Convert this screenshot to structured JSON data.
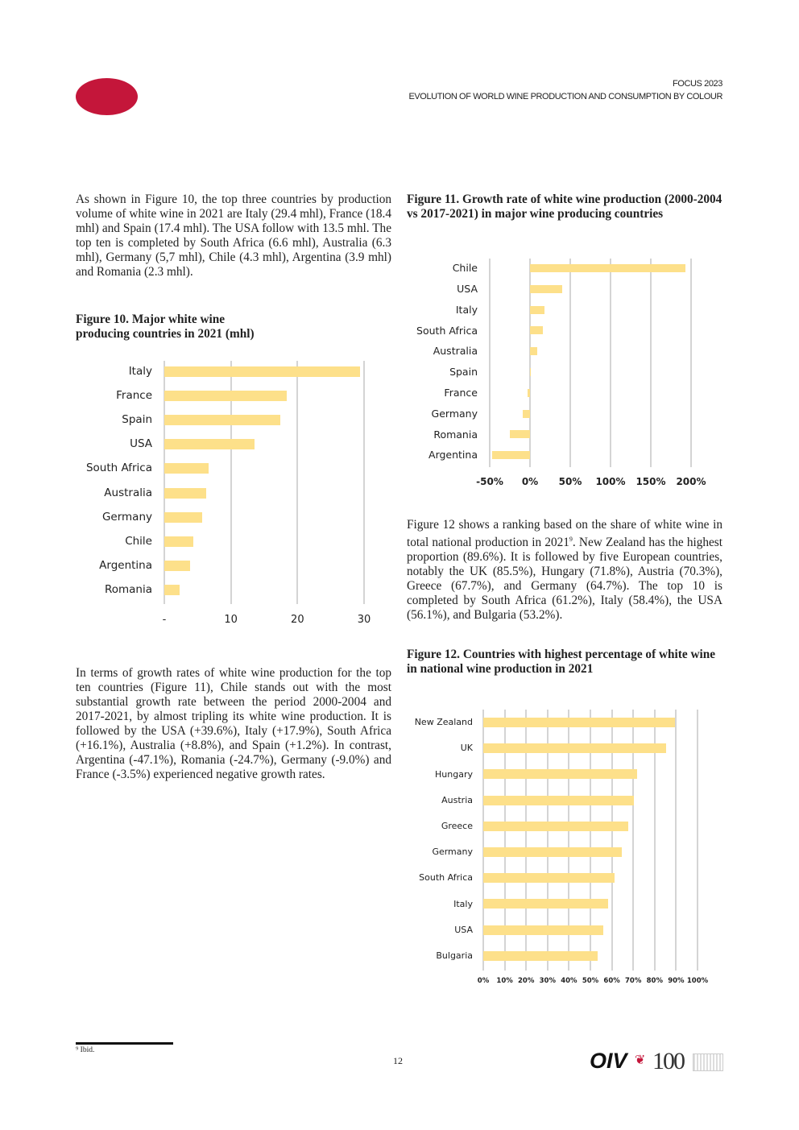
{
  "header": {
    "line1": "FOCUS 2023",
    "line2": "EVOLUTION OF WORLD WINE PRODUCTION AND CONSUMPTION BY COLOUR",
    "brand_color": "#c4163a"
  },
  "left": {
    "para1": "As shown in Figure 10, the top three countries by production volume of white wine in 2021 are Italy (29.4 mhl), France (18.4 mhl) and Spain (17.4 mhl). The USA follow with 13.5 mhl. The top ten is completed by South Africa (6.6 mhl), Australia (6.3 mhl), Germany (5,7 mhl), Chile (4.3 mhl), Argentina (3.9 mhl) and Romania (2.3 mhl).",
    "fig10_title_a": "Figure 10.  Major white wine",
    "fig10_title_b": "producing countries in 2021 (mhl)",
    "para2": "In terms of growth rates of white wine production for the top ten countries (Figure 11), Chile stands out with the most substantial growth rate between the period 2000-2004 and 2017-2021, by almost tripling its white wine production. It is followed by the USA (+39.6%), Italy (+17.9%), South Africa (+16.1%), Australia (+8.8%), and Spain (+1.2%). In contrast, Argentina (-47.1%), Romania (-24.7%), Germany (-9.0%) and France (-3.5%) experienced negative growth rates."
  },
  "right": {
    "fig11_title": "Figure 11.  Growth rate of white wine production (2000-2004 vs 2017-2021) in major wine producing countries",
    "para3_a": "Figure 12 shows a ranking based on the share of white wine in total national production in 2021",
    "para3_sup": "9",
    "para3_b": ". New Zealand has the highest proportion (89.6%). It is followed by five European countries, notably the UK (85.5%), Hungary (71.8%), Austria (70.3%), Greece (67.7%), and Germany (64.7%). The top 10 is completed by South Africa (61.2%), Italy (58.4%), the USA (56.1%), and Bulgaria (53.2%).",
    "fig12_title": "Figure 12. Countries with highest percentage of white wine in national wine production in 2021"
  },
  "footer": {
    "footnote": "⁹ Ibid.",
    "page_number": "12",
    "logo_text": "OIV",
    "logo_number": "100"
  },
  "chart_data": [
    {
      "type": "bar",
      "orientation": "horizontal",
      "bar_color": "#fde08a",
      "grid": true,
      "categories": [
        "Italy",
        "France",
        "Spain",
        "USA",
        "South Africa",
        "Australia",
        "Germany",
        "Chile",
        "Argentina",
        "Romania"
      ],
      "values": [
        29.4,
        18.4,
        17.4,
        13.5,
        6.6,
        6.3,
        5.7,
        4.3,
        3.9,
        2.3
      ],
      "xlim": [
        0,
        30
      ],
      "ticks": [
        0,
        10,
        20,
        30
      ],
      "tick_labels": [
        "-",
        "10",
        "20",
        "30"
      ]
    },
    {
      "type": "bar",
      "orientation": "horizontal",
      "bar_color": "#fde08a",
      "grid": true,
      "categories": [
        "Chile",
        "USA",
        "Italy",
        "South Africa",
        "Australia",
        "Spain",
        "France",
        "Germany",
        "Romania",
        "Argentina"
      ],
      "values": [
        193,
        39.6,
        17.9,
        16.1,
        8.8,
        1.2,
        -3.5,
        -9.0,
        -24.7,
        -47.1
      ],
      "xlim": [
        -50,
        200
      ],
      "ticks": [
        -50,
        0,
        50,
        100,
        150,
        200
      ],
      "tick_labels": [
        "-50%",
        "0%",
        "50%",
        "100%",
        "150%",
        "200%"
      ]
    },
    {
      "type": "bar",
      "orientation": "horizontal",
      "bar_color": "#fde08a",
      "grid": true,
      "categories": [
        "New Zealand",
        "UK",
        "Hungary",
        "Austria",
        "Greece",
        "Germany",
        "South Africa",
        "Italy",
        "USA",
        "Bulgaria"
      ],
      "values": [
        89.6,
        85.5,
        71.8,
        70.3,
        67.7,
        64.7,
        61.2,
        58.4,
        56.1,
        53.2
      ],
      "xlim": [
        0,
        100
      ],
      "ticks": [
        0,
        10,
        20,
        30,
        40,
        50,
        60,
        70,
        80,
        90,
        100
      ],
      "tick_labels": [
        "0%",
        "10%",
        "20%",
        "30%",
        "40%",
        "50%",
        "60%",
        "70%",
        "80%",
        "90%",
        "100%"
      ]
    }
  ]
}
